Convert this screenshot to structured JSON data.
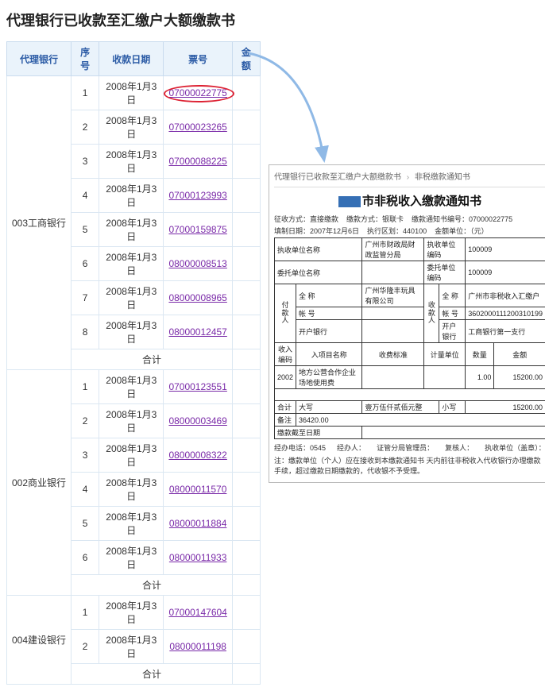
{
  "page_title": "代理银行已收款至汇缴户大额缴款书",
  "table": {
    "headers": [
      "代理银行",
      "序号",
      "收款日期",
      "票号",
      "金额"
    ],
    "subtotal_label": "合计",
    "groups": [
      {
        "bank": "003工商银行",
        "rows": [
          {
            "idx": "1",
            "date": "2008年1月3日",
            "ticket": "07000022775",
            "highlight": true
          },
          {
            "idx": "2",
            "date": "2008年1月3日",
            "ticket": "07000023265"
          },
          {
            "idx": "3",
            "date": "2008年1月3日",
            "ticket": "07000088225"
          },
          {
            "idx": "4",
            "date": "2008年1月3日",
            "ticket": "07000123993"
          },
          {
            "idx": "5",
            "date": "2008年1月3日",
            "ticket": "07000159875"
          },
          {
            "idx": "6",
            "date": "2008年1月3日",
            "ticket": "08000008513"
          },
          {
            "idx": "7",
            "date": "2008年1月3日",
            "ticket": "08000008965"
          },
          {
            "idx": "8",
            "date": "2008年1月3日",
            "ticket": "08000012457"
          }
        ]
      },
      {
        "bank": "002商业银行",
        "rows": [
          {
            "idx": "1",
            "date": "2008年1月3日",
            "ticket": "07000123551"
          },
          {
            "idx": "2",
            "date": "2008年1月3日",
            "ticket": "08000003469"
          },
          {
            "idx": "3",
            "date": "2008年1月3日",
            "ticket": "08000008322"
          },
          {
            "idx": "4",
            "date": "2008年1月3日",
            "ticket": "08000011570"
          },
          {
            "idx": "5",
            "date": "2008年1月3日",
            "ticket": "08000011884"
          },
          {
            "idx": "6",
            "date": "2008年1月3日",
            "ticket": "08000011933"
          }
        ]
      },
      {
        "bank": "004建设银行",
        "rows": [
          {
            "idx": "1",
            "date": "2008年1月3日",
            "ticket": "07000147604"
          },
          {
            "idx": "2",
            "date": "2008年1月3日",
            "ticket": "08000011198"
          }
        ]
      }
    ]
  },
  "doc": {
    "breadcrumb": [
      "代理银行已收款至汇缴户大额缴款书",
      "非税缴款通知书"
    ],
    "title_suffix": "市非税收入缴款通知书",
    "meta1": [
      {
        "label": "征收方式：",
        "value": "直接缴款"
      },
      {
        "label": "缴款方式：",
        "value": "银联卡"
      },
      {
        "label": "缴款通知书编号：",
        "value": "07000022775"
      }
    ],
    "meta2": [
      {
        "label": "填制日期：",
        "value": "2007年12月6日"
      },
      {
        "label": "执行区划：",
        "value": "440100"
      },
      {
        "label": "金额单位：",
        "value": "（元）"
      }
    ],
    "fields": {
      "exec_unit_name_l": "执收单位名称",
      "exec_unit_name_v": "广州市财政局财政监管分局",
      "exec_unit_code_l": "执收单位编码",
      "exec_unit_code_v": "100009",
      "entrust_unit_l": "委托单位名称",
      "entrust_unit_v": "",
      "entrust_code_l": "委托单位编码",
      "entrust_code_v": "100009",
      "payer_side": "付款人",
      "payee_side": "收款人",
      "full_name_l": "全   称",
      "payer_name": "广州华隆丰玩具有限公司",
      "payee_name": "广州市非税收入汇缴户",
      "acct_l": "帐   号",
      "payer_acct": "",
      "payee_acct": "3602000111200310199",
      "bank_l": "开户银行",
      "payer_bank": "",
      "payee_bank": "工商银行第一支行",
      "income_code_l": "收入编码",
      "item_l": "入项目名称",
      "charge_std_l": "收费标准",
      "unit_l": "计量单位",
      "qty_l": "数量",
      "amt_l": "金额",
      "income_code_v": "2002",
      "item_v": "地方公营合作企业场地使用费",
      "qty_v": "1.00",
      "amt_v": "15200.00",
      "total_l": "合计",
      "caps_l": "大写",
      "caps_v": "壹万伍仟贰佰元整",
      "small_l": "小写",
      "small_v": "15200.00",
      "remark_l": "备注",
      "remark_v": "36420.00",
      "deadline_l": "缴款截至日期"
    },
    "foot": {
      "agent_l": "经办电话：",
      "agent_v": "0545",
      "verify_l": "经办人：",
      "dept_l": "证管分局管理员：",
      "review_l": "复核人：",
      "seal_l": "执收单位（盖章）："
    },
    "note": "注：缴款单位（个人）应在接收到本缴款通知书    天内前往非税收入代收银行办理缴款手续，超过缴款日期缴款的，代收银不予受理。"
  },
  "colors": {
    "header_bg": "#eaf3fb",
    "header_text": "#2a5aa5",
    "border": "#c9dbee",
    "link": "#7a2aa8",
    "highlight_ring": "#d23",
    "arrow": "#8fb9e6",
    "region": "#356fb5"
  }
}
